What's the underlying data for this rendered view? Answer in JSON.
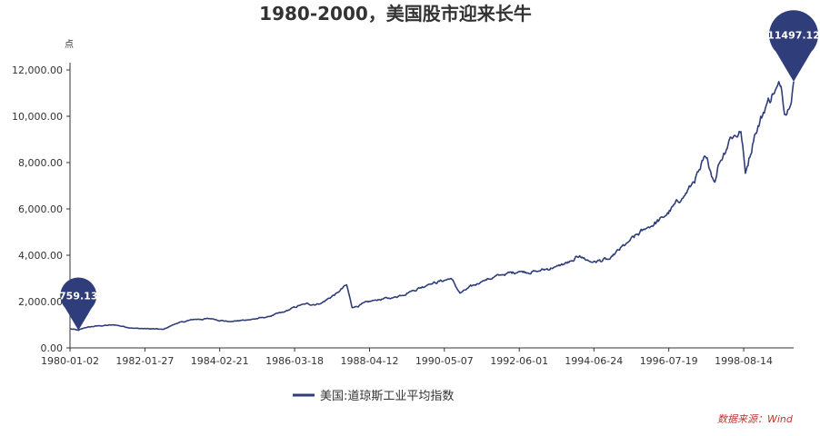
{
  "chart_data": {
    "type": "line",
    "title": "1980-2000，美国股市迎来长牛",
    "ylabel": "点",
    "ylim": [
      0,
      12000
    ],
    "y_ticks": [
      "0.00",
      "2,000.00",
      "4,000.00",
      "6,000.00",
      "8,000.00",
      "10,000.00",
      "12,000.00"
    ],
    "x_ticks": [
      "1980-01-02",
      "1982-01-27",
      "1984-02-21",
      "1986-03-18",
      "1988-04-12",
      "1990-05-07",
      "1992-06-01",
      "1994-06-24",
      "1996-07-19",
      "1998-08-14"
    ],
    "legend_position": "bottom-center",
    "grid": false,
    "source": "数据来源：Wind",
    "series": [
      {
        "name": "美国:道琼斯工业平均指数",
        "color": "#2f3e7a",
        "x": [
          "1980-01-02",
          "1980-03-27",
          "1980-06-01",
          "1980-10-01",
          "1981-04-01",
          "1981-10-01",
          "1982-08-01",
          "1982-12-01",
          "1983-06-01",
          "1983-12-01",
          "1984-06-01",
          "1984-12-01",
          "1985-06-01",
          "1985-12-01",
          "1986-06-01",
          "1986-12-01",
          "1987-06-01",
          "1987-08-25",
          "1987-10-19",
          "1988-06-01",
          "1988-12-01",
          "1989-06-01",
          "1989-12-01",
          "1990-07-15",
          "1990-10-11",
          "1991-06-01",
          "1991-12-01",
          "1992-06-01",
          "1992-12-01",
          "1993-06-01",
          "1993-12-01",
          "1994-01-31",
          "1994-06-01",
          "1994-12-01",
          "1995-06-01",
          "1995-12-01",
          "1996-06-01",
          "1996-12-01",
          "1997-03-01",
          "1997-06-01",
          "1997-08-01",
          "1997-10-27",
          "1997-12-01",
          "1998-04-01",
          "1998-07-17",
          "1998-08-31",
          "1998-12-01",
          "1999-04-01",
          "1999-06-01",
          "1999-08-25",
          "1999-10-15",
          "1999-12-31"
        ],
        "values": [
          824,
          759,
          870,
          950,
          990,
          850,
          800,
          1040,
          1230,
          1260,
          1130,
          1210,
          1320,
          1550,
          1880,
          1900,
          2400,
          2722,
          1738,
          2060,
          2160,
          2440,
          2750,
          2999,
          2365,
          2900,
          3150,
          3300,
          3300,
          3500,
          3750,
          3978,
          3700,
          3830,
          4550,
          5150,
          5650,
          6450,
          7000,
          7700,
          8200,
          7160,
          7900,
          9100,
          9337,
          7539,
          9180,
          10500,
          10970,
          11300,
          10050,
          11497
        ]
      }
    ],
    "annotations": [
      {
        "type": "min-marker",
        "x": "1980-03-27",
        "value": 759.13,
        "label": "759.13"
      },
      {
        "type": "max-marker",
        "x": "1999-12-31",
        "value": 11497.12,
        "label": "11497.12"
      }
    ]
  }
}
